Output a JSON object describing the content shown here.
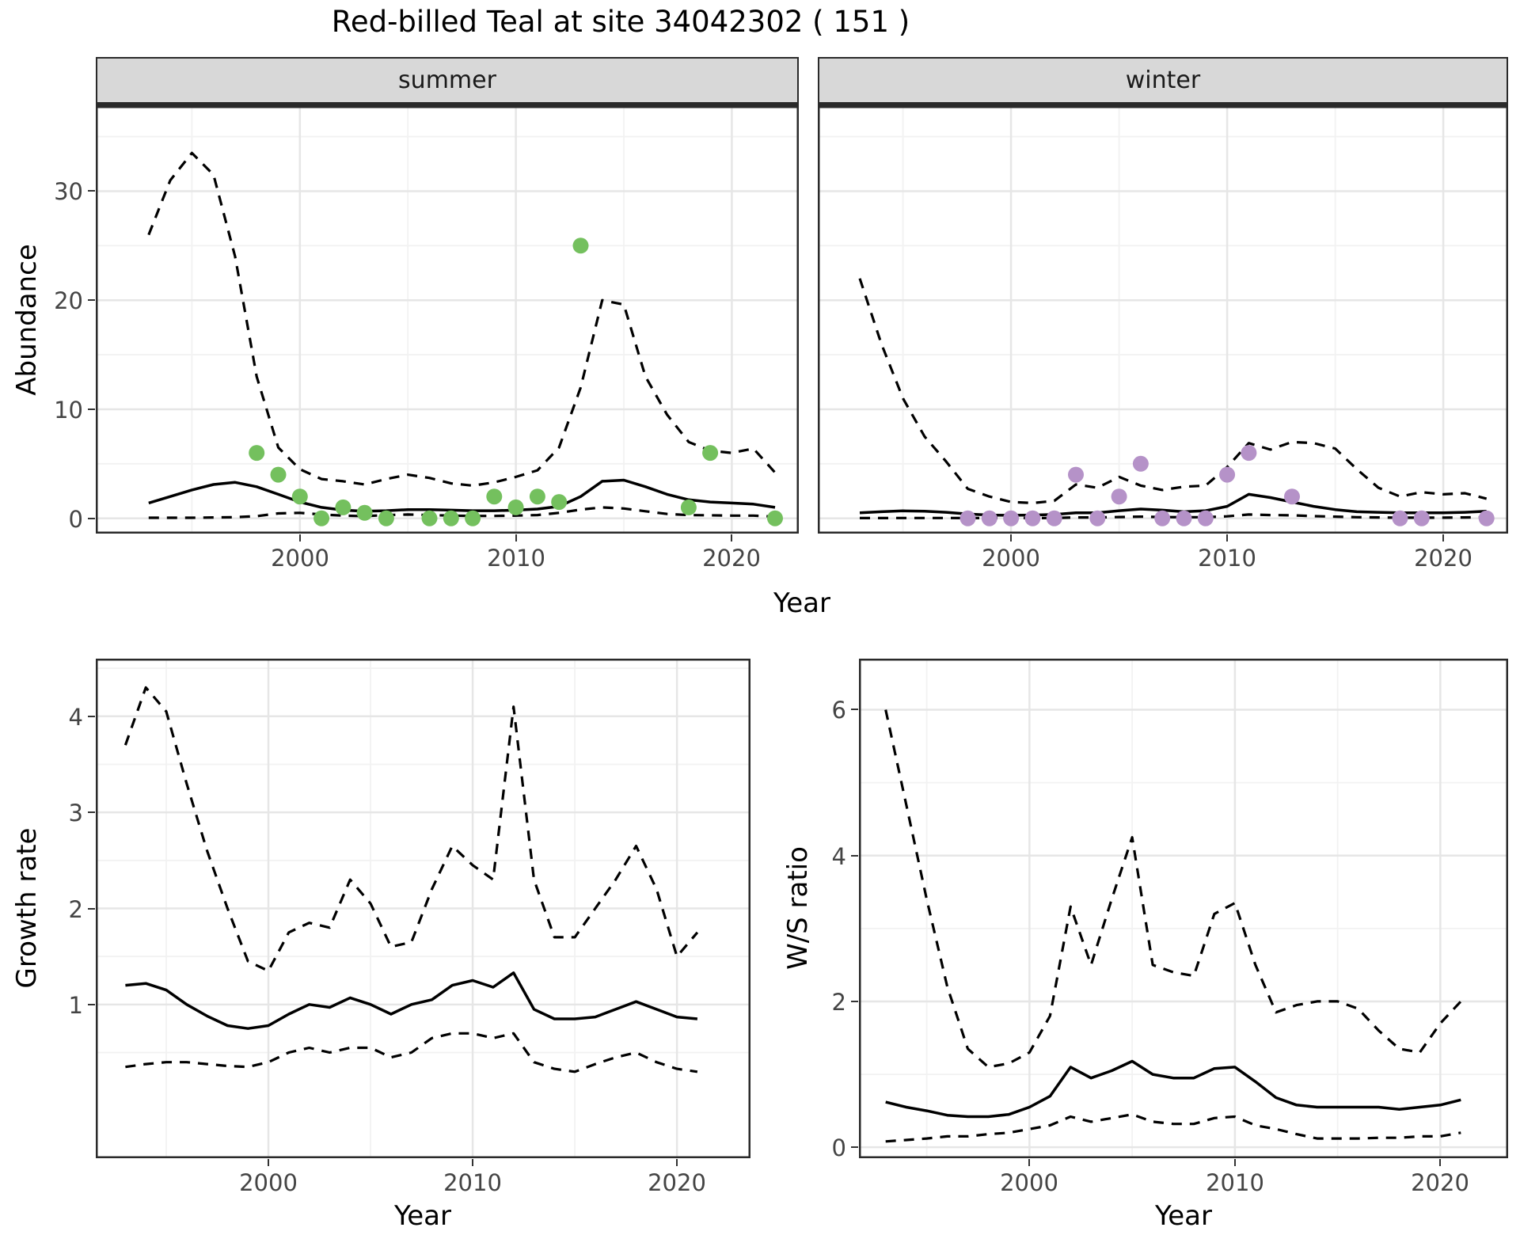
{
  "title": "Red-billed Teal at site 34042302 ( 151 )",
  "axis_labels": {
    "abundance": "Abundance",
    "growth": "Growth rate",
    "ws": "W/S ratio",
    "year": "Year"
  },
  "style": {
    "fit_line_color": "#000000",
    "ci_line_color": "#000000",
    "summer_point_color": "#74c05e",
    "winter_point_color": "#b592c8",
    "grid_major_color": "#e6e6e6",
    "grid_minor_color": "#f2f2f2",
    "panel_border_color": "#2a2a2a",
    "strip_bg_color": "#d8d8d8",
    "tick_text_color": "#444444"
  },
  "chart_data": [
    {
      "id": "abundance_summer",
      "type": "line+scatter",
      "facet_label": "summer",
      "xlabel": "Year",
      "ylabel": "Abundance",
      "xlim": [
        1990.55,
        2023.1
      ],
      "ylim": [
        -1.4,
        37.8
      ],
      "xticks": [
        2000,
        2010,
        2020
      ],
      "xminor": [
        1995,
        2005,
        2015
      ],
      "yticks": [
        0,
        10,
        20,
        30
      ],
      "yminor": [
        5,
        15,
        25,
        35
      ],
      "show_y_ticks": true,
      "years": [
        1993,
        1994,
        1995,
        1996,
        1997,
        1998,
        1999,
        2000,
        2001,
        2002,
        2003,
        2004,
        2005,
        2006,
        2007,
        2008,
        2009,
        2010,
        2011,
        2012,
        2013,
        2014,
        2015,
        2016,
        2017,
        2018,
        2019,
        2020,
        2021,
        2022
      ],
      "fit": [
        1.4,
        2.0,
        2.6,
        3.1,
        3.3,
        2.9,
        2.2,
        1.5,
        1.0,
        0.75,
        0.65,
        0.7,
        0.8,
        0.8,
        0.75,
        0.7,
        0.7,
        0.75,
        0.85,
        1.1,
        2.0,
        3.4,
        3.5,
        2.9,
        2.2,
        1.7,
        1.5,
        1.4,
        1.3,
        1.0
      ],
      "upper_ci": [
        26,
        31,
        33.5,
        31.5,
        24,
        13,
        6.5,
        4.5,
        3.6,
        3.4,
        3.1,
        3.6,
        4.0,
        3.7,
        3.2,
        3.0,
        3.3,
        3.8,
        4.4,
        6.5,
        12,
        20,
        19.6,
        13,
        9.5,
        7.0,
        6.2,
        6.0,
        6.4,
        4.2
      ],
      "lower_ci": [
        0.05,
        0.05,
        0.05,
        0.08,
        0.1,
        0.2,
        0.45,
        0.5,
        0.35,
        0.25,
        0.2,
        0.3,
        0.35,
        0.3,
        0.25,
        0.22,
        0.22,
        0.25,
        0.3,
        0.5,
        0.8,
        1.0,
        0.9,
        0.65,
        0.4,
        0.3,
        0.28,
        0.25,
        0.25,
        0.15
      ],
      "observed": [
        [
          1998,
          6
        ],
        [
          1999,
          4
        ],
        [
          2000,
          2
        ],
        [
          2001,
          0
        ],
        [
          2002,
          1
        ],
        [
          2003,
          0.5
        ],
        [
          2004,
          0
        ],
        [
          2006,
          0
        ],
        [
          2007,
          0
        ],
        [
          2008,
          0
        ],
        [
          2009,
          2
        ],
        [
          2010,
          1
        ],
        [
          2011,
          2
        ],
        [
          2012,
          1.5
        ],
        [
          2013,
          25
        ],
        [
          2018,
          1
        ],
        [
          2019,
          6
        ],
        [
          2022,
          0
        ]
      ],
      "point_color": "#74c05e"
    },
    {
      "id": "abundance_winter",
      "type": "line+scatter",
      "facet_label": "winter",
      "xlabel": "Year",
      "ylabel": "Abundance",
      "xlim": [
        1991.06,
        2023.0
      ],
      "ylim": [
        -1.4,
        37.8
      ],
      "xticks": [
        2000,
        2010,
        2020
      ],
      "xminor": [
        1995,
        2005,
        2015
      ],
      "yticks": [
        0,
        10,
        20,
        30
      ],
      "yminor": [
        5,
        15,
        25,
        35
      ],
      "show_y_ticks": false,
      "years": [
        1993,
        1994,
        1995,
        1996,
        1997,
        1998,
        1999,
        2000,
        2001,
        2002,
        2003,
        2004,
        2005,
        2006,
        2007,
        2008,
        2009,
        2010,
        2011,
        2012,
        2013,
        2014,
        2015,
        2016,
        2017,
        2018,
        2019,
        2020,
        2021,
        2022
      ],
      "fit": [
        0.5,
        0.6,
        0.68,
        0.65,
        0.55,
        0.4,
        0.3,
        0.28,
        0.3,
        0.35,
        0.5,
        0.5,
        0.7,
        0.85,
        0.75,
        0.6,
        0.7,
        1.1,
        2.2,
        1.9,
        1.5,
        1.1,
        0.8,
        0.6,
        0.55,
        0.5,
        0.5,
        0.5,
        0.55,
        0.65
      ],
      "upper_ci": [
        22,
        16,
        11,
        7.5,
        5.2,
        2.7,
        2.0,
        1.5,
        1.4,
        1.6,
        3.1,
        2.8,
        3.8,
        3.0,
        2.6,
        2.9,
        3.0,
        4.7,
        6.9,
        6.3,
        7.0,
        6.9,
        6.4,
        4.5,
        2.8,
        2.0,
        2.4,
        2.2,
        2.3,
        1.8
      ],
      "lower_ci": [
        0.02,
        0.02,
        0.03,
        0.03,
        0.03,
        0.02,
        0.02,
        0.02,
        0.02,
        0.03,
        0.08,
        0.08,
        0.12,
        0.15,
        0.12,
        0.1,
        0.1,
        0.18,
        0.35,
        0.3,
        0.28,
        0.2,
        0.15,
        0.1,
        0.08,
        0.06,
        0.06,
        0.06,
        0.08,
        0.1
      ],
      "observed": [
        [
          1998,
          0
        ],
        [
          1999,
          0
        ],
        [
          2000,
          0
        ],
        [
          2001,
          0
        ],
        [
          2002,
          0
        ],
        [
          2003,
          4
        ],
        [
          2004,
          0
        ],
        [
          2005,
          2
        ],
        [
          2006,
          5
        ],
        [
          2007,
          0
        ],
        [
          2008,
          0
        ],
        [
          2009,
          0
        ],
        [
          2010,
          4
        ],
        [
          2011,
          6
        ],
        [
          2013,
          2
        ],
        [
          2018,
          0
        ],
        [
          2019,
          0
        ],
        [
          2022,
          0
        ]
      ],
      "point_color": "#b592c8"
    },
    {
      "id": "growth_rate",
      "type": "line",
      "facet_label": "",
      "xlabel": "Year",
      "ylabel": "Growth rate",
      "xlim": [
        1991.55,
        2023.6
      ],
      "ylim": [
        -0.6,
        4.6
      ],
      "xticks": [
        2000,
        2010,
        2020
      ],
      "xminor": [
        1995,
        2005,
        2015
      ],
      "yticks": [
        1,
        2,
        3,
        4
      ],
      "yminor": [
        0.5,
        1.5,
        2.5,
        3.5,
        4.5
      ],
      "show_y_ticks": true,
      "years": [
        1993,
        1994,
        1995,
        1996,
        1997,
        1998,
        1999,
        2000,
        2001,
        2002,
        2003,
        2004,
        2005,
        2006,
        2007,
        2008,
        2009,
        2010,
        2011,
        2012,
        2013,
        2014,
        2015,
        2016,
        2017,
        2018,
        2019,
        2020,
        2021
      ],
      "fit": [
        1.2,
        1.22,
        1.15,
        1.0,
        0.88,
        0.78,
        0.75,
        0.78,
        0.9,
        1.0,
        0.97,
        1.07,
        1.0,
        0.9,
        1.0,
        1.05,
        1.2,
        1.25,
        1.18,
        1.33,
        0.95,
        0.85,
        0.85,
        0.87,
        0.95,
        1.03,
        0.95,
        0.87,
        0.85
      ],
      "upper_ci": [
        3.7,
        4.3,
        4.05,
        3.3,
        2.6,
        2.0,
        1.45,
        1.35,
        1.75,
        1.85,
        1.8,
        2.3,
        2.05,
        1.6,
        1.65,
        2.2,
        2.65,
        2.45,
        2.3,
        4.1,
        2.3,
        1.7,
        1.7,
        2.0,
        2.3,
        2.65,
        2.2,
        1.5,
        1.75
      ],
      "lower_ci": [
        0.35,
        0.38,
        0.4,
        0.4,
        0.38,
        0.36,
        0.35,
        0.4,
        0.5,
        0.55,
        0.5,
        0.55,
        0.55,
        0.45,
        0.5,
        0.65,
        0.7,
        0.7,
        0.65,
        0.7,
        0.4,
        0.33,
        0.3,
        0.38,
        0.45,
        0.5,
        0.4,
        0.33,
        0.3
      ],
      "observed": [],
      "point_color": "#000000"
    },
    {
      "id": "ws_ratio",
      "type": "line",
      "facet_label": "",
      "xlabel": "Year",
      "ylabel": "W/S ratio",
      "xlim": [
        1991.7,
        2023.3
      ],
      "ylim": [
        -0.15,
        6.7
      ],
      "xticks": [
        2000,
        2010,
        2020
      ],
      "xminor": [
        1995,
        2005,
        2015
      ],
      "yticks": [
        0,
        2,
        4,
        6
      ],
      "yminor": [
        1,
        3,
        5
      ],
      "show_y_ticks": true,
      "years": [
        1993,
        1994,
        1995,
        1996,
        1997,
        1998,
        1999,
        2000,
        2001,
        2002,
        2003,
        2004,
        2005,
        2006,
        2007,
        2008,
        2009,
        2010,
        2011,
        2012,
        2013,
        2014,
        2015,
        2016,
        2017,
        2018,
        2019,
        2020,
        2021
      ],
      "fit": [
        0.62,
        0.55,
        0.5,
        0.44,
        0.42,
        0.42,
        0.45,
        0.55,
        0.7,
        1.1,
        0.95,
        1.05,
        1.18,
        1.0,
        0.95,
        0.95,
        1.08,
        1.1,
        0.9,
        0.68,
        0.58,
        0.55,
        0.55,
        0.55,
        0.55,
        0.52,
        0.55,
        0.58,
        0.65
      ],
      "upper_ci": [
        6.0,
        4.7,
        3.4,
        2.2,
        1.35,
        1.1,
        1.15,
        1.3,
        1.8,
        3.3,
        2.5,
        3.4,
        4.25,
        2.5,
        2.4,
        2.35,
        3.2,
        3.35,
        2.5,
        1.85,
        1.95,
        2.0,
        2.0,
        1.9,
        1.6,
        1.35,
        1.3,
        1.7,
        2.0
      ],
      "lower_ci": [
        0.08,
        0.1,
        0.12,
        0.15,
        0.15,
        0.18,
        0.2,
        0.25,
        0.3,
        0.42,
        0.35,
        0.4,
        0.45,
        0.35,
        0.32,
        0.32,
        0.4,
        0.42,
        0.3,
        0.25,
        0.18,
        0.12,
        0.12,
        0.12,
        0.13,
        0.13,
        0.15,
        0.15,
        0.2
      ],
      "observed": [],
      "point_color": "#000000"
    }
  ]
}
